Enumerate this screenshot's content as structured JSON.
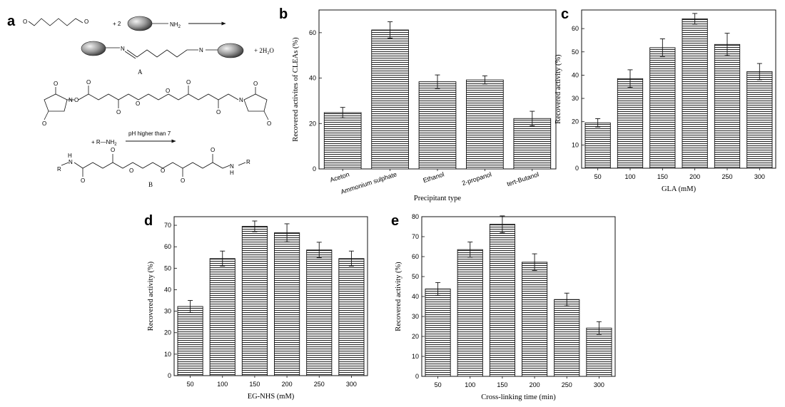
{
  "figure": {
    "panel_letters": [
      "a",
      "b",
      "c",
      "d",
      "e"
    ],
    "scheme": {
      "label_A": "A",
      "label_B": "B",
      "reagent_2": "+ 2",
      "nh2": "NH",
      "nh2_sub": "2",
      "water": "+ 2H",
      "water_sub": "2",
      "water_end": "O",
      "o_letter": "O",
      "n_letter": "N",
      "h_letter": "H",
      "r_letter": "R",
      "plus_r_nh2": "+  R—NH",
      "ph_condition": "pH higher than 7"
    }
  },
  "chart_data": [
    {
      "id": "b",
      "type": "bar",
      "categories": [
        "Aceton",
        "Ammonium sulphate",
        "Ethanol",
        "2-propanol",
        "tert-Butanol"
      ],
      "values": [
        24.8,
        61.2,
        38.4,
        39.2,
        22.2
      ],
      "errors": [
        2.3,
        3.6,
        3.0,
        1.8,
        3.2
      ],
      "xlabel": "Precipitant type",
      "ylabel": "Recovered activites of CLEAs (%)",
      "ylim": [
        0,
        70
      ],
      "yticks": [
        0,
        20,
        40,
        60
      ]
    },
    {
      "id": "c",
      "type": "bar",
      "categories": [
        "50",
        "100",
        "150",
        "200",
        "250",
        "300"
      ],
      "values": [
        19.5,
        38.5,
        51.8,
        64.2,
        53.2,
        41.5
      ],
      "errors": [
        1.8,
        3.8,
        3.8,
        2.3,
        4.8,
        3.5
      ],
      "xlabel": "GLA (mM)",
      "ylabel": "Recovered activity (%)",
      "ylim": [
        0,
        68
      ],
      "yticks": [
        0,
        10,
        20,
        30,
        40,
        50,
        60
      ]
    },
    {
      "id": "d",
      "type": "bar",
      "categories": [
        "50",
        "100",
        "150",
        "200",
        "250",
        "300"
      ],
      "values": [
        32.2,
        54.5,
        69.5,
        66.5,
        58.5,
        54.5
      ],
      "errors": [
        2.8,
        3.5,
        2.5,
        4.2,
        3.6,
        3.5
      ],
      "xlabel": "EG-NHS (mM)",
      "ylabel": "Recovered activity (%)",
      "ylim": [
        0,
        74
      ],
      "yticks": [
        0,
        10,
        20,
        30,
        40,
        50,
        60,
        70
      ]
    },
    {
      "id": "e",
      "type": "bar",
      "categories": [
        "50",
        "100",
        "150",
        "200",
        "250",
        "300"
      ],
      "values": [
        43.8,
        63.5,
        76.2,
        57.2,
        38.5,
        24.2
      ],
      "errors": [
        3.2,
        3.8,
        4.2,
        4.2,
        3.2,
        3.2
      ],
      "xlabel": "Cross-linking time (min)",
      "ylabel": "Recovered activity (%)",
      "ylim": [
        0,
        80
      ],
      "yticks": [
        0,
        10,
        20,
        30,
        40,
        50,
        60,
        70,
        80
      ]
    }
  ]
}
